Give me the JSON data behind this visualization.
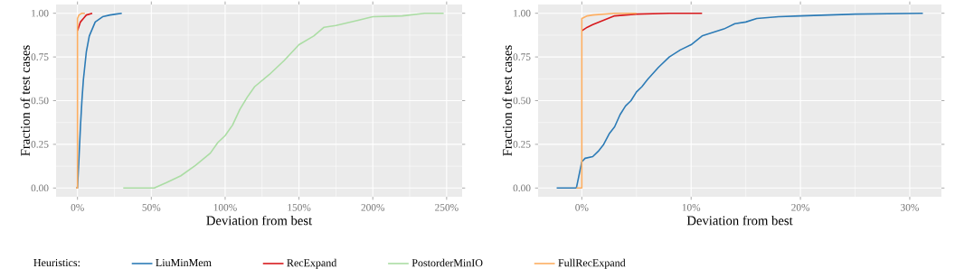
{
  "chart_data": [
    {
      "type": "line",
      "xlabel": "Deviation from best",
      "ylabel": "Fraction of test cases",
      "legend_title": "Heuristics:",
      "legend": "bottom",
      "grid": true,
      "xlim": [
        -14.5,
        260.5
      ],
      "ylim": [
        -0.05,
        1.05
      ],
      "xticks": [
        {
          "value": 0,
          "label": "0%"
        },
        {
          "value": 50,
          "label": "50%"
        },
        {
          "value": 100,
          "label": "100%"
        },
        {
          "value": 150,
          "label": "150%"
        },
        {
          "value": 200,
          "label": "200%"
        },
        {
          "value": 250,
          "label": "250%"
        }
      ],
      "yticks": [
        {
          "value": 0,
          "label": "0.00"
        },
        {
          "value": 0.25,
          "label": "0.25"
        },
        {
          "value": 0.5,
          "label": "0.50"
        },
        {
          "value": 0.75,
          "label": "0.75"
        },
        {
          "value": 1,
          "label": "1.00"
        }
      ],
      "series": [
        {
          "name": "LiuMinMem",
          "color": "#2c7bb6",
          "x": [
            -1,
            0,
            1,
            2,
            3,
            4,
            6,
            8,
            12,
            17,
            22,
            26,
            30
          ],
          "values": [
            0,
            0,
            0.17,
            0.35,
            0.5,
            0.62,
            0.78,
            0.87,
            0.95,
            0.98,
            0.99,
            0.995,
            1
          ]
        },
        {
          "name": "RecExpand",
          "color": "#d7191c",
          "x": [
            0,
            2,
            4,
            6,
            10
          ],
          "values": [
            0.9,
            0.95,
            0.97,
            0.99,
            1
          ]
        },
        {
          "name": "PostorderMinIO",
          "color": "#abdda4",
          "x": [
            31,
            40,
            52,
            60,
            70,
            80,
            90,
            95,
            100,
            105,
            110,
            115,
            120,
            130,
            140,
            150,
            160,
            167,
            175,
            190,
            200,
            220,
            235,
            248
          ],
          "values": [
            0,
            0,
            0,
            0.03,
            0.07,
            0.13,
            0.2,
            0.26,
            0.3,
            0.36,
            0.45,
            0.52,
            0.58,
            0.65,
            0.73,
            0.82,
            0.87,
            0.92,
            0.93,
            0.96,
            0.98,
            0.985,
            1,
            1
          ]
        },
        {
          "name": "FullRecExpand",
          "color": "#fdae61",
          "x": [
            -1,
            0,
            0,
            1,
            3,
            5
          ],
          "values": [
            0,
            0,
            0.97,
            0.99,
            1,
            1
          ]
        }
      ]
    },
    {
      "type": "line",
      "xlabel": "Deviation from best",
      "ylabel": "Fraction of test cases",
      "grid": true,
      "xlim": [
        -4,
        32.9
      ],
      "ylim": [
        -0.05,
        1.05
      ],
      "xticks": [
        {
          "value": 0,
          "label": "0%"
        },
        {
          "value": 10,
          "label": "10%"
        },
        {
          "value": 20,
          "label": "20%"
        },
        {
          "value": 30,
          "label": "30%"
        }
      ],
      "yticks": [
        {
          "value": 0,
          "label": "0.00"
        },
        {
          "value": 0.25,
          "label": "0.25"
        },
        {
          "value": 0.5,
          "label": "0.50"
        },
        {
          "value": 0.75,
          "label": "0.75"
        },
        {
          "value": 1,
          "label": "1.00"
        }
      ],
      "series": [
        {
          "color": "#2c7bb6",
          "x": [
            -2.3,
            -0.5,
            0,
            0.3,
            1,
            1.5,
            2,
            2.5,
            3,
            3.5,
            4,
            4.5,
            5,
            5.5,
            6,
            7,
            8,
            9,
            10,
            11,
            12,
            13,
            14,
            15,
            16,
            18,
            20,
            25,
            31.2
          ],
          "values": [
            0,
            0,
            0.15,
            0.17,
            0.18,
            0.21,
            0.25,
            0.31,
            0.35,
            0.42,
            0.47,
            0.5,
            0.55,
            0.58,
            0.62,
            0.69,
            0.75,
            0.79,
            0.82,
            0.87,
            0.89,
            0.91,
            0.94,
            0.95,
            0.97,
            0.98,
            0.985,
            0.995,
            1
          ]
        },
        {
          "color": "#d7191c",
          "x": [
            0,
            0.5,
            1,
            2,
            3,
            5,
            8,
            11
          ],
          "values": [
            0.9,
            0.92,
            0.935,
            0.96,
            0.985,
            0.995,
            1,
            1
          ]
        },
        {
          "color": "#fdae61",
          "x": [
            -0.5,
            0,
            0,
            0.5,
            1,
            3,
            5
          ],
          "values": [
            0,
            0,
            0.97,
            0.985,
            0.99,
            1,
            1
          ]
        }
      ]
    }
  ]
}
